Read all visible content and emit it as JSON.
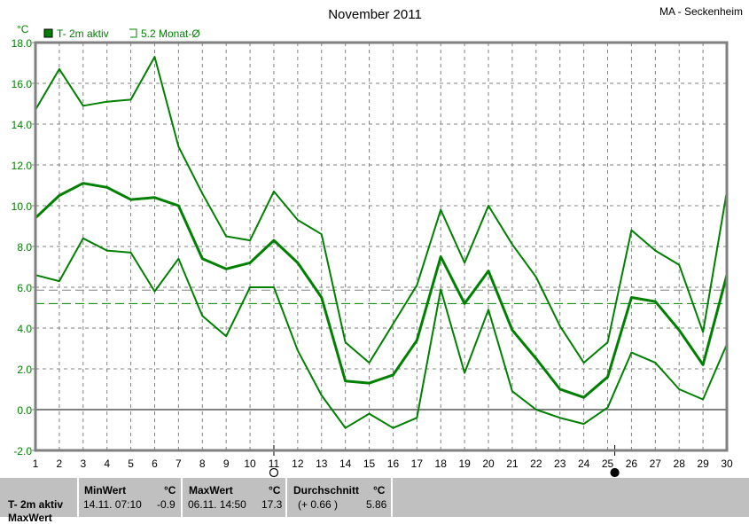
{
  "chart_data": {
    "type": "line",
    "title": "November 2011",
    "station": "MA - Seckenheim",
    "ylabel": "°C",
    "ylim": [
      -2.0,
      18.0
    ],
    "yticks": [
      "18.0",
      "16.0",
      "14.0",
      "12.0",
      "10.0",
      "8.0",
      "6.0",
      "4.0",
      "2.0",
      "0.0",
      "-2.0"
    ],
    "x": [
      1,
      2,
      3,
      4,
      5,
      6,
      7,
      8,
      9,
      10,
      11,
      12,
      13,
      14,
      15,
      16,
      17,
      18,
      19,
      20,
      21,
      22,
      23,
      24,
      25,
      26,
      27,
      28,
      29,
      30
    ],
    "grid": true,
    "legend": {
      "placement": "top-left",
      "items": [
        {
          "label": "T- 2m aktiv",
          "filled": true
        },
        {
          "label": "5.2 Monat-Ø",
          "filled": false
        }
      ]
    },
    "colors": {
      "series": "#008000",
      "month_avg": "#008000",
      "period_avg": "#808080",
      "axis": "#808080"
    },
    "series": [
      {
        "values": [
          14.7,
          16.7,
          14.9,
          15.1,
          15.2,
          17.3,
          12.9,
          10.6,
          8.5,
          8.3,
          10.7,
          9.3,
          8.6,
          3.3,
          2.3,
          4.2,
          6.1,
          9.8,
          7.2,
          10.0,
          8.1,
          6.5,
          4.1,
          2.3,
          3.3,
          8.8,
          7.8,
          7.1,
          3.8,
          10.7
        ],
        "width": 2
      },
      {
        "values": [
          9.4,
          10.5,
          11.1,
          10.9,
          10.3,
          10.4,
          10.0,
          7.4,
          6.9,
          7.2,
          8.3,
          7.2,
          5.5,
          1.4,
          1.3,
          1.7,
          3.4,
          7.5,
          5.2,
          6.8,
          3.9,
          2.5,
          1.0,
          0.6,
          1.6,
          5.5,
          5.3,
          3.9,
          2.2,
          6.6
        ],
        "width": 3
      },
      {
        "values": [
          6.6,
          6.3,
          8.4,
          7.8,
          7.7,
          5.8,
          7.4,
          4.6,
          3.6,
          6.0,
          6.0,
          2.9,
          0.7,
          -0.9,
          -0.2,
          -0.9,
          -0.4,
          5.9,
          1.8,
          4.9,
          0.9,
          0.0,
          -0.4,
          -0.7,
          0.1,
          2.8,
          2.3,
          1.0,
          0.5,
          3.2
        ],
        "width": 2
      }
    ],
    "reference_lines": [
      {
        "value": 5.2,
        "style": "dashed-green"
      },
      {
        "value": 5.86,
        "style": "dashed-gray"
      },
      {
        "value": 0.0,
        "style": "solid-gray"
      }
    ],
    "moon_phases": [
      {
        "day": 11.0,
        "phase": "full"
      },
      {
        "day": 25.3,
        "phase": "new"
      }
    ]
  },
  "stats": {
    "row_label": "T- 2m aktiv",
    "row_label_2": "MaxWert",
    "min": {
      "header": "MinWert",
      "unit": "°C",
      "date": "14.11.  07:10",
      "value": "-0.9"
    },
    "max": {
      "header": "MaxWert",
      "unit": "°C",
      "date": "06.11.  14:50",
      "value": "17.3"
    },
    "avg": {
      "header": "Durchschnitt",
      "unit": "°C",
      "note": "(+ 0.66 )",
      "value": "5.86"
    }
  }
}
